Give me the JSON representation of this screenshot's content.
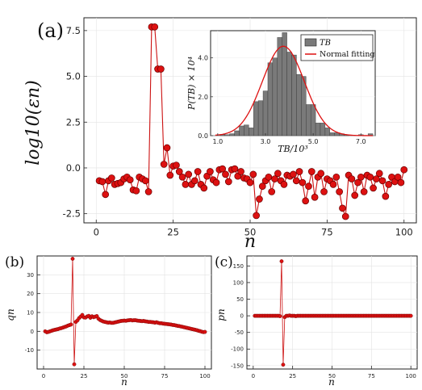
{
  "chart_data": [
    {
      "type": "line",
      "panel_label": "(a)",
      "xlabel": "n",
      "ylabel": "log10(εn)",
      "xlim": [
        -4,
        104
      ],
      "ylim": [
        -3.0,
        8.2
      ],
      "xticks": [
        "0",
        "25",
        "50",
        "75",
        "100"
      ],
      "yticks": [
        "7.5",
        "5.0",
        "2.5",
        "0.0",
        "-2.5"
      ],
      "grid": true,
      "marker_color": "#dd1111",
      "line_color": "#cc1111",
      "x": [
        1,
        2,
        3,
        4,
        5,
        6,
        7,
        8,
        9,
        10,
        11,
        12,
        13,
        14,
        15,
        16,
        17,
        18,
        19,
        20,
        21,
        22,
        23,
        24,
        25,
        26,
        27,
        28,
        29,
        30,
        31,
        32,
        33,
        34,
        35,
        36,
        37,
        38,
        39,
        40,
        41,
        42,
        43,
        44,
        45,
        46,
        47,
        48,
        49,
        50,
        51,
        52,
        53,
        54,
        55,
        56,
        57,
        58,
        59,
        60,
        61,
        62,
        63,
        64,
        65,
        66,
        67,
        68,
        69,
        70,
        71,
        72,
        73,
        74,
        75,
        76,
        77,
        78,
        79,
        80,
        81,
        82,
        83,
        84,
        85,
        86,
        87,
        88,
        89,
        90,
        91,
        92,
        93,
        94,
        95,
        96,
        97,
        98,
        99,
        100
      ],
      "y": [
        -0.7,
        -0.75,
        -1.45,
        -0.7,
        -0.55,
        -0.9,
        -0.85,
        -0.8,
        -0.6,
        -0.5,
        -0.65,
        -1.2,
        -1.25,
        -0.5,
        -0.6,
        -0.7,
        -1.3,
        7.7,
        7.7,
        5.4,
        5.4,
        0.2,
        1.1,
        -0.4,
        0.1,
        0.15,
        -0.2,
        -0.5,
        -0.9,
        -0.35,
        -0.9,
        -0.7,
        -0.2,
        -0.9,
        -1.1,
        -0.45,
        -0.2,
        -0.65,
        -0.8,
        -0.1,
        -0.05,
        -0.35,
        -0.75,
        -0.1,
        -0.05,
        -0.45,
        -0.2,
        -0.55,
        -0.6,
        -0.8,
        -0.35,
        -2.6,
        -1.7,
        -1.0,
        -0.7,
        -0.5,
        -1.3,
        -0.6,
        -0.3,
        -0.7,
        -0.9,
        -0.4,
        -0.45,
        -0.35,
        -0.7,
        -0.2,
        -0.8,
        -1.8,
        -1.0,
        -0.2,
        -1.6,
        -0.5,
        -0.3,
        -1.3,
        -0.6,
        -0.7,
        -0.9,
        -0.5,
        -1.3,
        -2.2,
        -2.65,
        -0.4,
        -0.6,
        -1.5,
        -0.8,
        -0.5,
        -1.3,
        -0.4,
        -0.5,
        -1.1,
        -0.6,
        -0.3,
        -0.7,
        -1.55,
        -0.9,
        -0.5,
        -0.75,
        -0.5,
        -0.8,
        -0.1
      ]
    },
    {
      "type": "bar",
      "role": "inset",
      "xlabel": "TB/10³",
      "ylabel": "P(TB) × 10⁴",
      "xticks": [
        "1.0",
        "3.0",
        "5.0",
        "7.0"
      ],
      "yticks": [
        "4.0",
        "2.0",
        "0.0"
      ],
      "xlim": [
        0.7,
        7.6
      ],
      "ylim": [
        0,
        5.4
      ],
      "bin_width": 0.2,
      "bins": [
        1.0,
        1.2,
        1.4,
        1.6,
        1.8,
        2.0,
        2.2,
        2.4,
        2.6,
        2.8,
        3.0,
        3.2,
        3.4,
        3.6,
        3.8,
        4.0,
        4.2,
        4.4,
        4.6,
        4.8,
        5.0,
        5.2,
        5.4,
        5.6,
        5.8,
        6.0,
        6.2,
        6.4,
        6.6,
        6.8,
        7.0,
        7.2,
        7.4
      ],
      "values": [
        0.0,
        0.05,
        0.05,
        0.1,
        0.25,
        0.5,
        0.55,
        0.4,
        1.75,
        1.8,
        2.3,
        3.75,
        4.0,
        5.05,
        5.3,
        4.3,
        4.15,
        3.15,
        3.05,
        1.6,
        1.6,
        0.65,
        0.65,
        0.4,
        0.15,
        0.15,
        0.1,
        0.05,
        0.0,
        0.0,
        0.05,
        0.0,
        0.1
      ],
      "bar_color": "#7a7a7a",
      "fit_color": "#dd1111",
      "fit": {
        "mean": 3.75,
        "sigma": 0.88,
        "peak": 4.6
      },
      "legend": [
        {
          "label": "TB",
          "kind": "bar"
        },
        {
          "label": "Normal fitting",
          "kind": "line"
        }
      ],
      "legend_position": "top-right"
    },
    {
      "type": "line",
      "panel_label": "(b)",
      "xlabel": "n",
      "ylabel": "qn",
      "xlim": [
        -4,
        104
      ],
      "ylim": [
        -20,
        40
      ],
      "xticks": [
        "0",
        "25",
        "50",
        "75",
        "100"
      ],
      "yticks": [
        "30",
        "20",
        "10",
        "0",
        "-10"
      ],
      "x": [
        1,
        2,
        3,
        4,
        5,
        6,
        7,
        8,
        9,
        10,
        11,
        12,
        13,
        14,
        15,
        16,
        17,
        18,
        19,
        20,
        21,
        22,
        23,
        24,
        25,
        26,
        27,
        28,
        29,
        30,
        31,
        32,
        33,
        34,
        35,
        36,
        37,
        38,
        39,
        40,
        41,
        42,
        43,
        44,
        45,
        46,
        47,
        48,
        49,
        50,
        51,
        52,
        53,
        54,
        55,
        56,
        57,
        58,
        59,
        60,
        61,
        62,
        63,
        64,
        65,
        66,
        67,
        68,
        69,
        70,
        71,
        72,
        73,
        74,
        75,
        76,
        77,
        78,
        79,
        80,
        81,
        82,
        83,
        84,
        85,
        86,
        87,
        88,
        89,
        90,
        91,
        92,
        93,
        94,
        95,
        96,
        97,
        98,
        99,
        100
      ],
      "y": [
        0,
        -0.5,
        -0.3,
        0,
        0.3,
        0.6,
        0.8,
        1.0,
        1.2,
        1.5,
        1.7,
        2.0,
        2.3,
        2.6,
        3.0,
        3.3,
        3.6,
        38.5,
        -17.5,
        5.0,
        5.8,
        7.0,
        7.8,
        8.7,
        7.4,
        7.3,
        7.9,
        8.2,
        7.2,
        8.0,
        7.5,
        7.8,
        8.1,
        6.7,
        6.0,
        5.6,
        5.2,
        5.0,
        4.8,
        4.6,
        4.7,
        4.5,
        4.5,
        4.7,
        4.9,
        5.1,
        5.3,
        5.5,
        5.6,
        5.7,
        5.6,
        5.8,
        5.9,
        6.0,
        5.8,
        5.9,
        5.9,
        5.7,
        5.6,
        5.5,
        5.4,
        5.5,
        5.3,
        5.2,
        5.0,
        5.0,
        4.9,
        4.8,
        4.6,
        4.8,
        4.5,
        4.3,
        4.3,
        4.1,
        4.0,
        3.9,
        3.8,
        3.7,
        3.6,
        3.4,
        3.3,
        3.1,
        2.9,
        2.8,
        2.6,
        2.4,
        2.2,
        2.0,
        1.8,
        1.6,
        1.4,
        1.2,
        1.0,
        0.8,
        0.6,
        0.3,
        0.1,
        -0.2,
        -0.4,
        -0.3
      ]
    },
    {
      "type": "line",
      "panel_label": "(c)",
      "xlabel": "n",
      "ylabel": "pn",
      "xlim": [
        -4,
        104
      ],
      "ylim": [
        -160,
        180
      ],
      "xticks": [
        "0",
        "25",
        "50",
        "75",
        "100"
      ],
      "yticks": [
        "150",
        "100",
        "50",
        "0",
        "-50",
        "-100",
        "-150"
      ],
      "x": [
        1,
        2,
        3,
        4,
        5,
        6,
        7,
        8,
        9,
        10,
        11,
        12,
        13,
        14,
        15,
        16,
        17,
        18,
        19,
        20,
        21,
        22,
        23,
        24,
        25,
        26,
        27,
        28,
        29,
        30,
        31,
        32,
        33,
        34,
        35,
        36,
        37,
        38,
        39,
        40,
        41,
        42,
        43,
        44,
        45,
        46,
        47,
        48,
        49,
        50,
        51,
        52,
        53,
        54,
        55,
        56,
        57,
        58,
        59,
        60,
        61,
        62,
        63,
        64,
        65,
        66,
        67,
        68,
        69,
        70,
        71,
        72,
        73,
        74,
        75,
        76,
        77,
        78,
        79,
        80,
        81,
        82,
        83,
        84,
        85,
        86,
        87,
        88,
        89,
        90,
        91,
        92,
        93,
        94,
        95,
        96,
        97,
        98,
        99,
        100
      ],
      "y": [
        0,
        0,
        0,
        0,
        0,
        0,
        0,
        0,
        0,
        0,
        0,
        0,
        0,
        0,
        0,
        0,
        -1,
        164,
        -147,
        -4,
        0,
        0,
        1,
        0,
        0,
        0,
        -1,
        0,
        0,
        0,
        0,
        0,
        0,
        0,
        0,
        0,
        0,
        0,
        0,
        0,
        0,
        0,
        0,
        0,
        0,
        0,
        0,
        0,
        0,
        0,
        0,
        0,
        0,
        0,
        0,
        0,
        0,
        0,
        0,
        0,
        0,
        0,
        0,
        0,
        0,
        0,
        0,
        0,
        0,
        0,
        0,
        0,
        0,
        0,
        0,
        0,
        0,
        0,
        0,
        0,
        0,
        0,
        0,
        0,
        0,
        0,
        0,
        0,
        0,
        0,
        0,
        0,
        0,
        0,
        0,
        0,
        0,
        0,
        0,
        0
      ]
    }
  ]
}
